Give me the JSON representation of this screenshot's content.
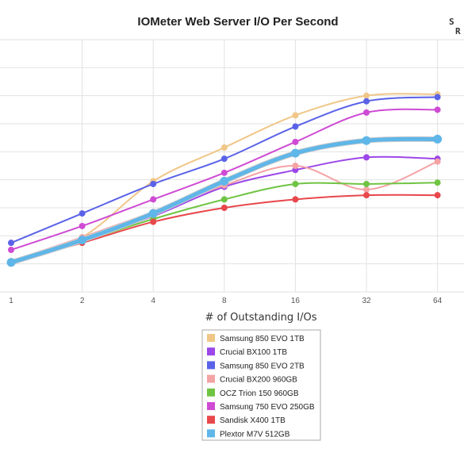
{
  "chart_data": {
    "type": "line",
    "title": "IOMeter Web Server I/O Per Second",
    "xlabel": "# of Outstanding I/Os",
    "ylabel": "",
    "x": [
      "1",
      "2",
      "4",
      "8",
      "16",
      "32",
      "64"
    ],
    "ylim": [
      0,
      9
    ],
    "grid": true,
    "legend_position": "bottom-center",
    "series": [
      {
        "name": "Samsung 850 EVO 1TB",
        "color": "#f0c789",
        "values": [
          1.05,
          1.95,
          3.95,
          5.15,
          6.3,
          7.0,
          7.05
        ]
      },
      {
        "name": "Crucial BX100 1TB",
        "color": "#9c47e8",
        "values": [
          1.05,
          1.85,
          2.7,
          3.75,
          4.35,
          4.8,
          4.75
        ]
      },
      {
        "name": "Samsung 850 EVO 2TB",
        "color": "#5a63e8",
        "values": [
          1.75,
          2.8,
          3.85,
          4.75,
          5.9,
          6.8,
          6.95
        ]
      },
      {
        "name": "Crucial BX200 960GB",
        "color": "#f4a3a5",
        "values": [
          1.1,
          1.95,
          2.85,
          3.8,
          4.5,
          3.65,
          4.65
        ]
      },
      {
        "name": "OCZ Trion 150 960GB",
        "color": "#6fc443",
        "values": [
          1.05,
          1.8,
          2.6,
          3.3,
          3.85,
          3.85,
          3.9
        ]
      },
      {
        "name": "Samsung 750 EVO 250GB",
        "color": "#cf4bd4",
        "values": [
          1.5,
          2.35,
          3.3,
          4.25,
          5.35,
          6.4,
          6.5
        ]
      },
      {
        "name": "Sandisk X400 1TB",
        "color": "#e8474b",
        "values": [
          1.05,
          1.75,
          2.5,
          3.0,
          3.3,
          3.45,
          3.45
        ]
      },
      {
        "name": "Plextor M7V 512GB",
        "color": "#5fb6e8",
        "values": [
          1.05,
          1.85,
          2.8,
          3.95,
          4.95,
          5.4,
          5.45
        ],
        "highlight": true
      }
    ]
  },
  "logo": {
    "line1": "S",
    "line2": "R"
  }
}
